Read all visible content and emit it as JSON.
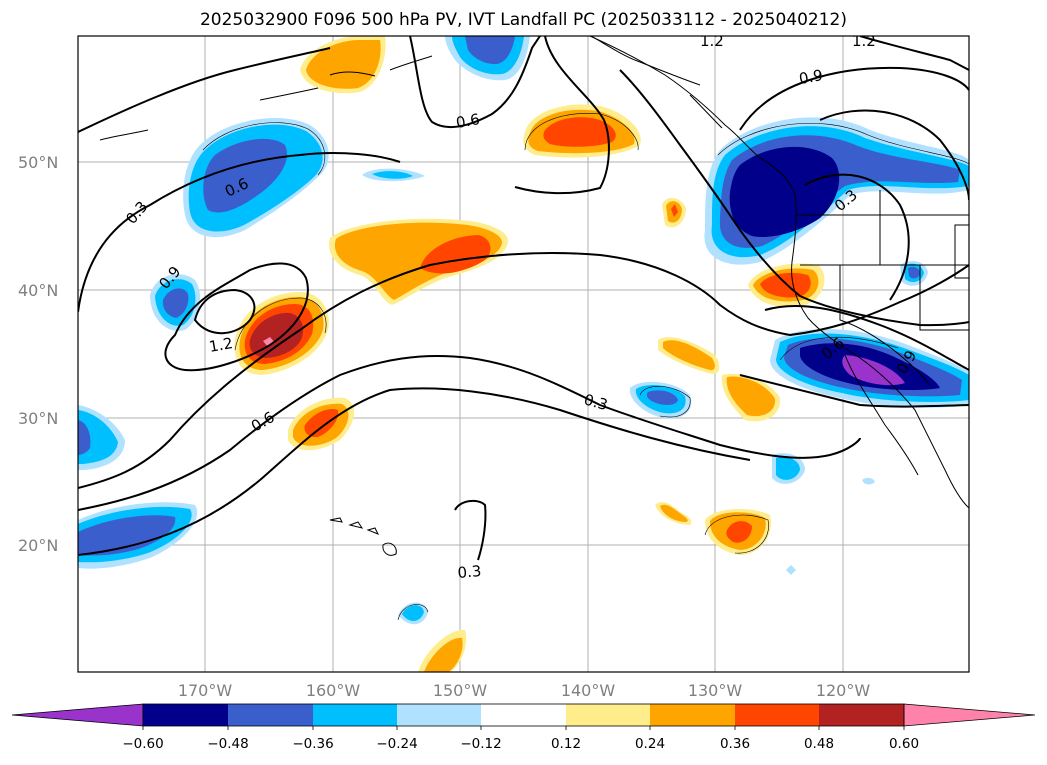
{
  "title": "2025032900 F096 500 hPa PV, IVT Landfall PC (2025033112 - 2025040212)",
  "map": {
    "lat_labels": [
      "50°N",
      "40°N",
      "30°N",
      "20°N"
    ],
    "lon_labels": [
      "170°W",
      "160°W",
      "150°W",
      "140°W",
      "130°W",
      "120°W"
    ],
    "contour_labels": [
      "0.3",
      "0.6",
      "0.9",
      "1.2",
      "0.6",
      "0.6",
      "0.3",
      "0.3",
      "0.9",
      "1.2",
      "1.2",
      "0.6",
      "0.3",
      "0.9"
    ],
    "grid": true
  },
  "colorbar": {
    "ticks": [
      "−0.60",
      "−0.48",
      "−0.36",
      "−0.24",
      "−0.12",
      "0.12",
      "0.24",
      "0.36",
      "0.48",
      "0.60"
    ],
    "colors": [
      "#9933cc",
      "#00008b",
      "#3a5fcd",
      "#00bfff",
      "#b0e2ff",
      "#ffffff",
      "#ffec8b",
      "#ffa500",
      "#ff4500",
      "#b22222",
      "#ff82ab"
    ],
    "extend": "both"
  }
}
